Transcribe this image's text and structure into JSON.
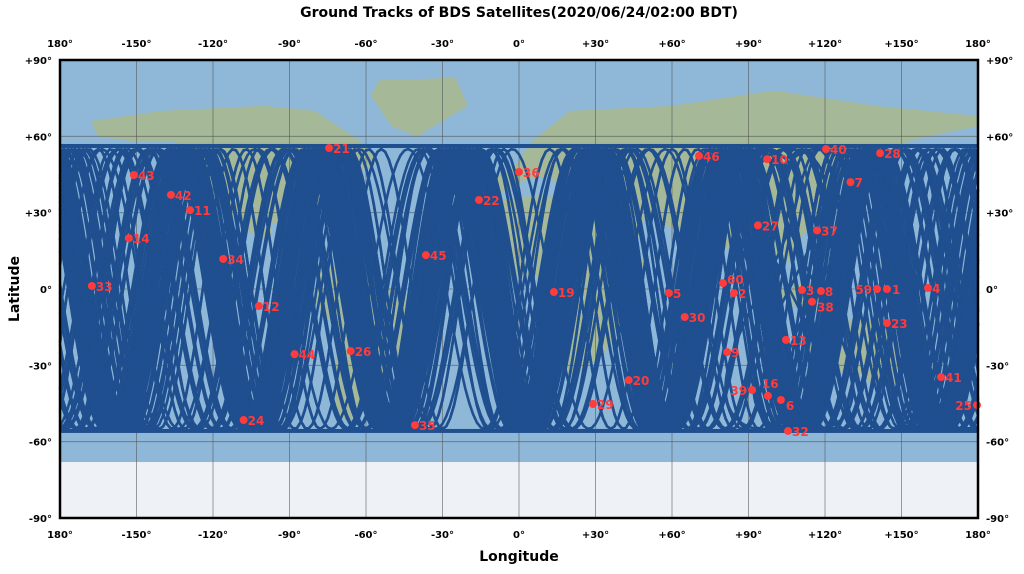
{
  "chart_data": {
    "type": "scatter",
    "title": "Ground Tracks of BDS Satellites(2020/06/24/02:00 BDT)",
    "xlabel": "Longitude",
    "ylabel": "Latitude",
    "xlim": [
      -180,
      180
    ],
    "ylim": [
      -90,
      90
    ],
    "grid": true,
    "x_ticks": [
      "180°",
      "-150°",
      "-120°",
      "-90°",
      "-60°",
      "-30°",
      "0°",
      "+30°",
      "+60°",
      "+90°",
      "+120°",
      "+150°",
      "180°"
    ],
    "y_ticks": [
      "+90°",
      "+60°",
      "+30°",
      "0°",
      "-30°",
      "-60°",
      "-90°"
    ],
    "colors": {
      "track": "#1f4f8f",
      "satellite": "#ff3b3b",
      "ocean": "#8fb8d8"
    },
    "satellites": [
      {
        "id": "21",
        "lon": -74.5,
        "lat": 55.4
      },
      {
        "id": "43",
        "lon": -151,
        "lat": 44.8
      },
      {
        "id": "42",
        "lon": -136.5,
        "lat": 37
      },
      {
        "id": "11",
        "lon": -129,
        "lat": 31
      },
      {
        "id": "14",
        "lon": -153,
        "lat": 20
      },
      {
        "id": "34",
        "lon": -116,
        "lat": 11.8
      },
      {
        "id": "33",
        "lon": -167.5,
        "lat": 1.2
      },
      {
        "id": "12",
        "lon": -102,
        "lat": -6.7
      },
      {
        "id": "44",
        "lon": -88,
        "lat": -25.6
      },
      {
        "id": "26",
        "lon": -66,
        "lat": -24.4
      },
      {
        "id": "24",
        "lon": -108,
        "lat": -51.5
      },
      {
        "id": "35",
        "lon": -40.8,
        "lat": -53.5
      },
      {
        "id": "45",
        "lon": -36.5,
        "lat": 13.3
      },
      {
        "id": "22",
        "lon": -15.7,
        "lat": 35
      },
      {
        "id": "36",
        "lon": 0,
        "lat": 46
      },
      {
        "id": "46",
        "lon": 70.6,
        "lat": 52.3
      },
      {
        "id": "10",
        "lon": 97.3,
        "lat": 51
      },
      {
        "id": "40",
        "lon": 120.4,
        "lat": 55
      },
      {
        "id": "28",
        "lon": 141.6,
        "lat": 53.4
      },
      {
        "id": "7",
        "lon": 130,
        "lat": 42
      },
      {
        "id": "27",
        "lon": 93.7,
        "lat": 25
      },
      {
        "id": "37",
        "lon": 116.9,
        "lat": 23
      },
      {
        "id": "19",
        "lon": 13.7,
        "lat": -1.2
      },
      {
        "id": "5",
        "lon": 58.8,
        "lat": -1.6
      },
      {
        "id": "60",
        "lon": 80,
        "lat": 2.3
      },
      {
        "id": "2",
        "lon": 84.3,
        "lat": -1.6
      },
      {
        "id": "30",
        "lon": 65,
        "lat": -11
      },
      {
        "id": "3",
        "lon": 111,
        "lat": -0.4
      },
      {
        "id": "8",
        "lon": 118.4,
        "lat": -0.8
      },
      {
        "id": "38",
        "lon": 114.9,
        "lat": -5
      },
      {
        "id": "59",
        "lon": 140.4,
        "lat": 0
      },
      {
        "id": "1",
        "lon": 144.3,
        "lat": 0
      },
      {
        "id": "4",
        "lon": 160.4,
        "lat": 0.4
      },
      {
        "id": "23",
        "lon": 144.3,
        "lat": -13.4
      },
      {
        "id": "13",
        "lon": 104.7,
        "lat": -20
      },
      {
        "id": "9",
        "lon": 81.6,
        "lat": -24.8
      },
      {
        "id": "41",
        "lon": 165.5,
        "lat": -34.6
      },
      {
        "id": "25",
        "lon": 179.6,
        "lat": -45.6
      },
      {
        "id": "20",
        "lon": 43,
        "lat": -35.8
      },
      {
        "id": "29",
        "lon": 29,
        "lat": -45.2
      },
      {
        "id": "39",
        "lon": 91.4,
        "lat": -39.7
      },
      {
        "id": "16",
        "lon": 97.6,
        "lat": -42
      },
      {
        "id": "6",
        "lon": 102.7,
        "lat": -43.6
      },
      {
        "id": "32",
        "lon": 105.5,
        "lat": -55.8
      }
    ]
  }
}
